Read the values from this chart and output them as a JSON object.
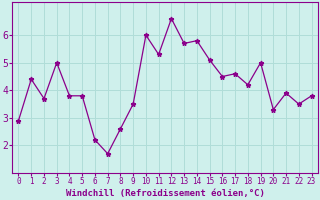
{
  "x": [
    0,
    1,
    2,
    3,
    4,
    5,
    6,
    7,
    8,
    9,
    10,
    11,
    12,
    13,
    14,
    15,
    16,
    17,
    18,
    19,
    20,
    21,
    22,
    23
  ],
  "y": [
    2.9,
    4.4,
    3.7,
    5.0,
    3.8,
    3.8,
    2.2,
    1.7,
    2.6,
    3.5,
    6.0,
    5.3,
    6.6,
    5.7,
    5.8,
    5.1,
    4.5,
    4.6,
    4.2,
    5.0,
    3.3,
    3.9,
    3.5,
    3.8
  ],
  "line_color": "#8b008b",
  "marker": "*",
  "bg_color": "#cff0ec",
  "grid_color": "#b0ddd8",
  "xlabel": "Windchill (Refroidissement éolien,°C)",
  "xlabel_color": "#8b008b",
  "ylim": [
    1.0,
    7.2
  ],
  "xlim": [
    -0.5,
    23.5
  ],
  "yticks": [
    2,
    3,
    4,
    5,
    6
  ],
  "xticks": [
    0,
    1,
    2,
    3,
    4,
    5,
    6,
    7,
    8,
    9,
    10,
    11,
    12,
    13,
    14,
    15,
    16,
    17,
    18,
    19,
    20,
    21,
    22,
    23
  ],
  "tick_color": "#8b008b",
  "axis_color": "#8b008b",
  "tick_fontsize": 5.5,
  "ytick_fontsize": 7.0,
  "linewidth": 0.9,
  "markersize": 3.5
}
